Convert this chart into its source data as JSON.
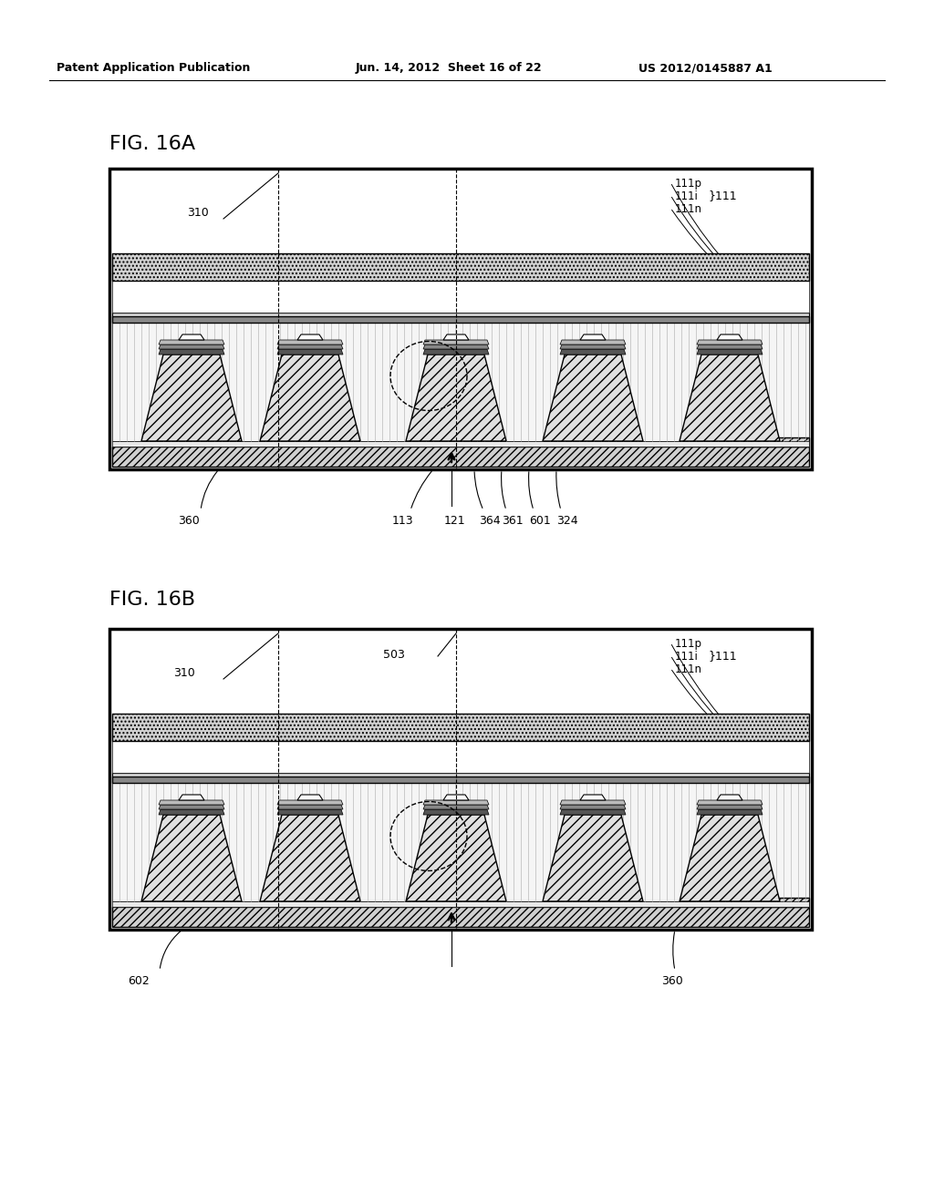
{
  "bg_color": "#ffffff",
  "header_text": "Patent Application Publication",
  "header_date": "Jun. 14, 2012  Sheet 16 of 22",
  "header_patent": "US 2012/0145887 A1",
  "fig_a_label": "FIG. 16A",
  "fig_b_label": "FIG. 16B"
}
